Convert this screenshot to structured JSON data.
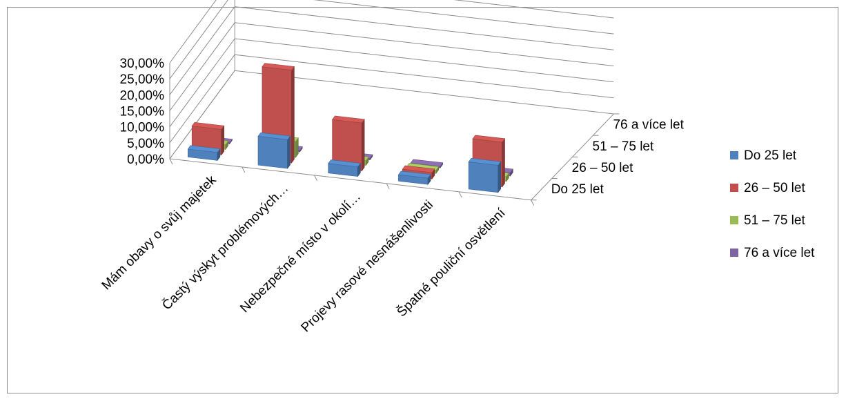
{
  "chart_data": {
    "type": "bar",
    "projection": "3d-grouped",
    "categories": [
      "Mám obavy o svůj majetek",
      "Častý výskyt problémových…",
      "Nebezpečné místo v okolí…",
      "Projevy rasové nesnášenlivosti",
      "Špatné pouliční osvětlení"
    ],
    "series": [
      {
        "name": "Do 25 let",
        "color": "#4f81bd",
        "values": [
          2.5,
          9.0,
          3.0,
          2.0,
          8.5
        ]
      },
      {
        "name": "26 – 50 let",
        "color": "#c0504d",
        "values": [
          8.0,
          29.0,
          15.0,
          2.0,
          14.0
        ]
      },
      {
        "name": "51 – 75 let",
        "color": "#9bbb59",
        "values": [
          1.5,
          5.0,
          1.5,
          1.0,
          1.5
        ]
      },
      {
        "name": "76 a více let",
        "color": "#8064a2",
        "values": [
          0.0,
          0.5,
          0.5,
          0.5,
          1.0
        ]
      }
    ],
    "depth_labels": [
      "76 a více let",
      "51 – 75 let",
      "26 – 50 let",
      "Do 25 let"
    ],
    "y_ticks": [
      "30,00%",
      "25,00%",
      "20,00%",
      "15,00%",
      "10,00%",
      "5,00%",
      "0,00%"
    ],
    "ylim": [
      0,
      30
    ],
    "grid": true,
    "legend_position": "right"
  }
}
